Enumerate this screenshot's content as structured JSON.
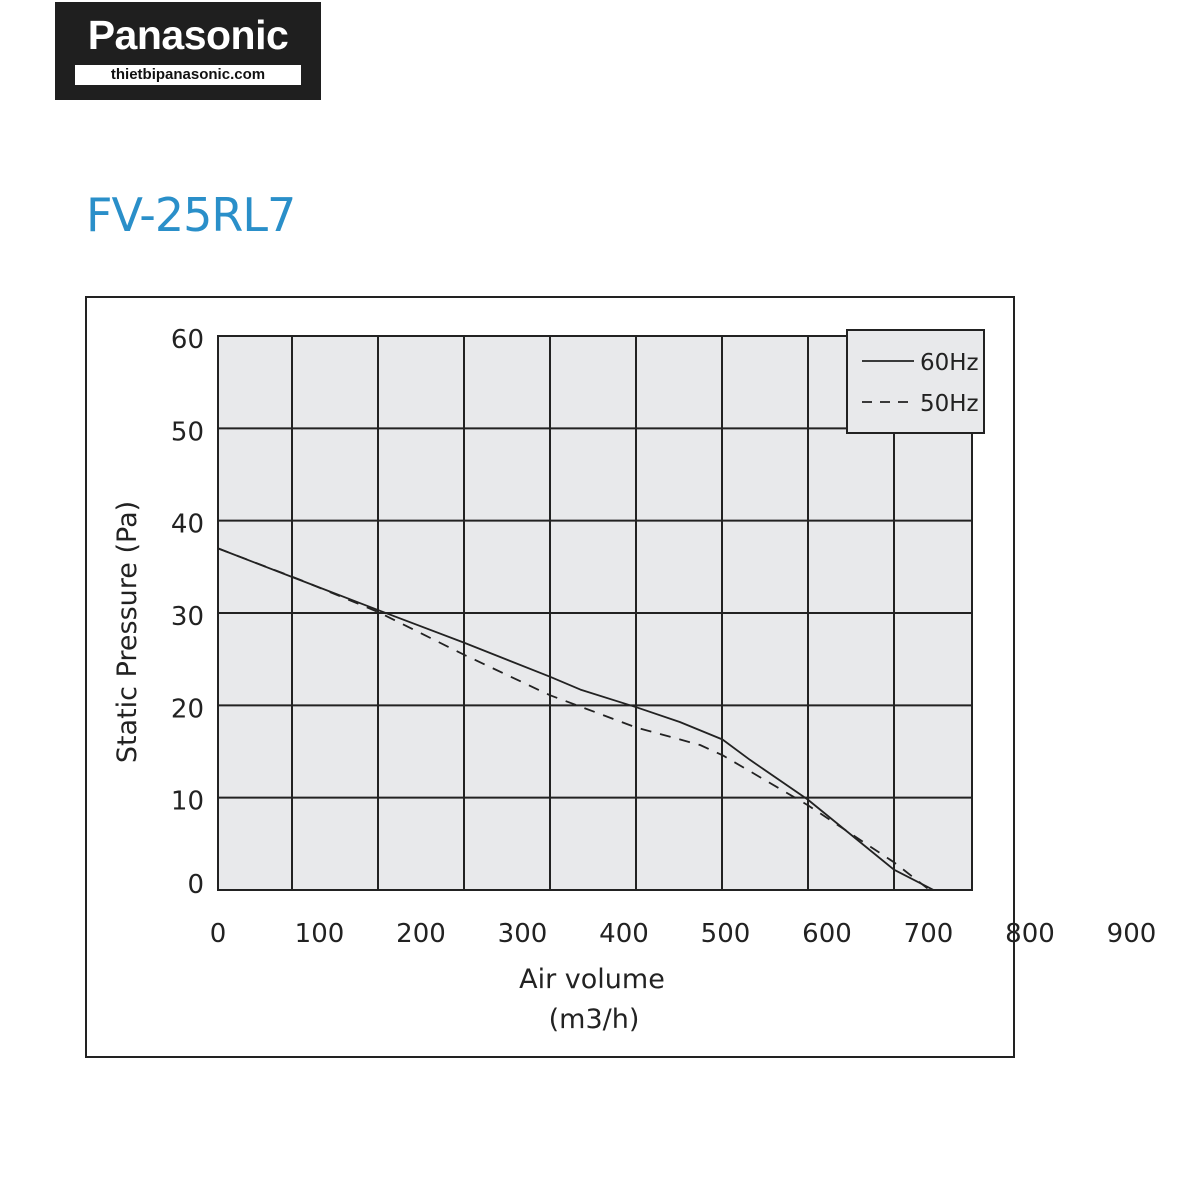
{
  "logo": {
    "brand": "Panasonic",
    "site": "thietbipanasonic.com"
  },
  "model": "FV-25RL7",
  "chart_data": {
    "type": "line",
    "title": "FV-25RL7",
    "xlabel": "Air volume",
    "xlabel_unit": "(m3/h)",
    "ylabel": "Static Pressure (Pa)",
    "x_ticks": [
      "0",
      "100",
      "200",
      "300",
      "400",
      "500",
      "600",
      "700",
      "800",
      "900"
    ],
    "y_ticks": [
      "0",
      "10",
      "20",
      "30",
      "40",
      "50",
      "60"
    ],
    "xlim": [
      0,
      900
    ],
    "ylim": [
      0,
      60
    ],
    "grid": true,
    "legend_position": "top-right",
    "background": "#e8e9eb",
    "series": [
      {
        "name": "60Hz",
        "style": "solid",
        "x": [
          0,
          73,
          158,
          242,
          327,
          357,
          412,
          455,
          497,
          524,
          581,
          666,
          705
        ],
        "y": [
          37,
          33.9,
          30.3,
          26.8,
          23.1,
          21.7,
          19.8,
          18.2,
          16.3,
          14.1,
          9.8,
          2.2,
          0
        ]
      },
      {
        "name": "50Hz",
        "style": "dashed",
        "x": [
          0,
          81,
          158,
          242,
          327,
          412,
          475,
          497,
          581,
          666,
          701
        ],
        "y": [
          37,
          33.6,
          30.1,
          25.5,
          21.1,
          17.6,
          15.7,
          14.6,
          9.2,
          3.0,
          0
        ]
      }
    ]
  }
}
